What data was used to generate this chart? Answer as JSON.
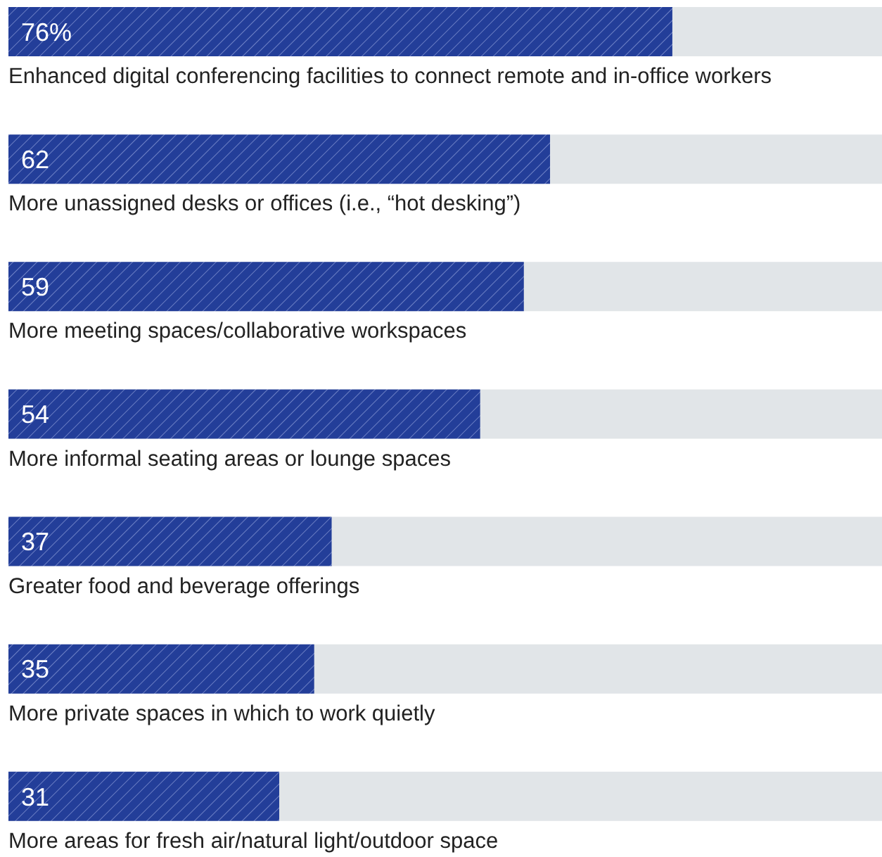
{
  "chart_data": {
    "type": "bar",
    "orientation": "horizontal",
    "categories": [
      "Enhanced digital conferencing facilities to connect remote and in-office workers",
      "More unassigned desks or offices (i.e., “hot desking”)",
      "More meeting spaces/collaborative workspaces",
      "More informal seating areas or lounge spaces",
      "Greater food and beverage offerings",
      "More private spaces in which to work quietly",
      "More areas for fresh air/natural light/outdoor space"
    ],
    "values": [
      76,
      62,
      59,
      54,
      37,
      35,
      31
    ],
    "value_labels": [
      "76%",
      "62",
      "59",
      "54",
      "37",
      "35",
      "31"
    ],
    "color": "#233e99",
    "xlim": [
      0,
      100
    ],
    "tick_labels": "y",
    "grid": false,
    "legend": false
  }
}
